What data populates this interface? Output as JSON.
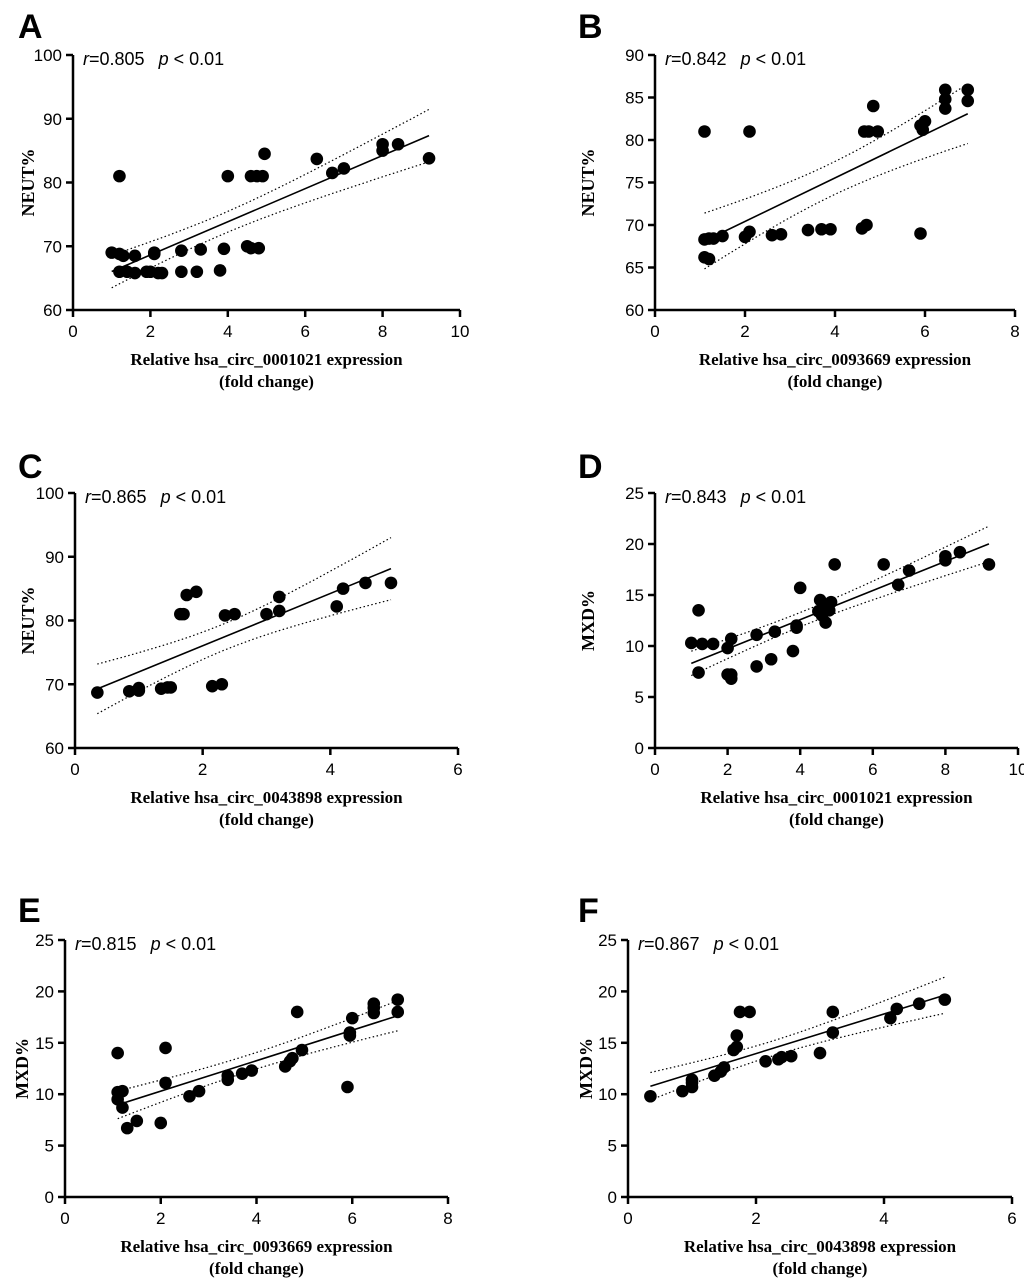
{
  "chart_data": [
    {
      "panel": "A",
      "type": "scatter",
      "r_label": "r",
      "r_value": "=0.805",
      "p_label": "p",
      "p_value": " < 0.01",
      "ylabel": "NEUT%",
      "xlabel": [
        "Relative hsa_circ_0001021 expression",
        "(fold change)"
      ],
      "xlim": [
        0,
        10
      ],
      "ylim": [
        60,
        100
      ],
      "xticks": [
        0,
        2,
        4,
        6,
        8,
        10
      ],
      "yticks": [
        60,
        70,
        80,
        90,
        100
      ],
      "points": [
        [
          1.0,
          69
        ],
        [
          1.2,
          68.8
        ],
        [
          1.3,
          68.5
        ],
        [
          1.6,
          68.5
        ],
        [
          1.2,
          66
        ],
        [
          1.4,
          66
        ],
        [
          1.6,
          65.8
        ],
        [
          1.9,
          66
        ],
        [
          2.0,
          66
        ],
        [
          2.1,
          68.8
        ],
        [
          2.1,
          69
        ],
        [
          2.2,
          65.8
        ],
        [
          2.3,
          65.8
        ],
        [
          2.8,
          69.3
        ],
        [
          2.8,
          66
        ],
        [
          3.2,
          66
        ],
        [
          3.3,
          69.5
        ],
        [
          3.8,
          66.2
        ],
        [
          3.9,
          69.6
        ],
        [
          4.0,
          81
        ],
        [
          4.5,
          70
        ],
        [
          4.6,
          69.7
        ],
        [
          4.8,
          69.7
        ],
        [
          4.6,
          81
        ],
        [
          4.75,
          81
        ],
        [
          4.9,
          81
        ],
        [
          1.2,
          81
        ],
        [
          4.95,
          84.5
        ],
        [
          6.3,
          83.7
        ],
        [
          6.7,
          81.5
        ],
        [
          7.0,
          82.2
        ],
        [
          8.0,
          86
        ],
        [
          8.0,
          85
        ],
        [
          8.4,
          86
        ],
        [
          9.2,
          83.8
        ]
      ]
    },
    {
      "panel": "B",
      "type": "scatter",
      "r_label": "r",
      "r_value": "=0.842",
      "p_label": "p",
      "p_value": " < 0.01",
      "ylabel": "NEUT%",
      "xlabel": [
        "Relative hsa_circ_0093669 expression",
        "(fold change)"
      ],
      "xlim": [
        0,
        8
      ],
      "ylim": [
        60,
        90
      ],
      "xticks": [
        0,
        2,
        4,
        6,
        8
      ],
      "yticks": [
        60,
        65,
        70,
        75,
        80,
        85,
        90
      ],
      "points": [
        [
          1.1,
          81
        ],
        [
          2.1,
          81
        ],
        [
          1.1,
          68.3
        ],
        [
          1.2,
          68.4
        ],
        [
          1.3,
          68.4
        ],
        [
          1.5,
          68.7
        ],
        [
          1.1,
          66.2
        ],
        [
          1.2,
          66
        ],
        [
          2.0,
          68.6
        ],
        [
          2.1,
          69.2
        ],
        [
          2.6,
          68.8
        ],
        [
          2.8,
          68.9
        ],
        [
          3.4,
          69.4
        ],
        [
          3.7,
          69.5
        ],
        [
          3.9,
          69.5
        ],
        [
          4.6,
          69.6
        ],
        [
          4.7,
          70
        ],
        [
          4.65,
          81
        ],
        [
          4.75,
          81
        ],
        [
          4.95,
          81
        ],
        [
          4.85,
          84
        ],
        [
          5.9,
          69
        ],
        [
          5.95,
          81.2
        ],
        [
          5.9,
          81.7
        ],
        [
          6.0,
          82.2
        ],
        [
          6.45,
          85.9
        ],
        [
          6.45,
          84.8
        ],
        [
          6.45,
          83.7
        ],
        [
          6.95,
          85.9
        ],
        [
          6.95,
          84.6
        ]
      ]
    },
    {
      "panel": "C",
      "type": "scatter",
      "r_label": "r",
      "r_value": "=0.865",
      "p_label": "p",
      "p_value": " < 0.01",
      "ylabel": "NEUT%",
      "xlabel": [
        "Relative hsa_circ_0043898 expression",
        "(fold change)"
      ],
      "xlim": [
        0,
        6
      ],
      "ylim": [
        60,
        100
      ],
      "xticks": [
        0,
        2,
        4,
        6
      ],
      "yticks": [
        60,
        70,
        80,
        90,
        100
      ],
      "points": [
        [
          0.35,
          68.7
        ],
        [
          0.85,
          68.9
        ],
        [
          1.0,
          69
        ],
        [
          1.0,
          69.4
        ],
        [
          1.35,
          69.3
        ],
        [
          1.45,
          69.5
        ],
        [
          1.5,
          69.5
        ],
        [
          1.65,
          81
        ],
        [
          1.7,
          81
        ],
        [
          1.75,
          84
        ],
        [
          1.9,
          84.5
        ],
        [
          2.15,
          69.7
        ],
        [
          2.3,
          70
        ],
        [
          2.35,
          80.8
        ],
        [
          2.5,
          81
        ],
        [
          3.0,
          81
        ],
        [
          3.2,
          83.7
        ],
        [
          3.2,
          81.5
        ],
        [
          4.1,
          82.2
        ],
        [
          4.2,
          85
        ],
        [
          4.55,
          85.9
        ],
        [
          4.95,
          85.9
        ]
      ]
    },
    {
      "panel": "D",
      "type": "scatter",
      "r_label": "r",
      "r_value": "=0.843",
      "p_label": "p",
      "p_value": " < 0.01",
      "ylabel": "MXD%",
      "xlabel": [
        "Relative hsa_circ_0001021 expression",
        "(fold change)"
      ],
      "xlim": [
        0,
        10
      ],
      "ylim": [
        0,
        25
      ],
      "xticks": [
        0,
        2,
        4,
        6,
        8,
        10
      ],
      "yticks": [
        0,
        5,
        10,
        15,
        20,
        25
      ],
      "points": [
        [
          1.0,
          10.3
        ],
        [
          1.2,
          13.5
        ],
        [
          1.2,
          7.4
        ],
        [
          1.3,
          10.2
        ],
        [
          1.6,
          10.2
        ],
        [
          2.0,
          7.2
        ],
        [
          2.0,
          9.8
        ],
        [
          2.1,
          6.8
        ],
        [
          2.1,
          10.7
        ],
        [
          2.1,
          7.2
        ],
        [
          2.8,
          8
        ],
        [
          2.8,
          11.1
        ],
        [
          3.2,
          8.7
        ],
        [
          3.3,
          11.4
        ],
        [
          3.8,
          9.5
        ],
        [
          3.9,
          12
        ],
        [
          3.9,
          11.8
        ],
        [
          4.0,
          15.7
        ],
        [
          4.5,
          13.4
        ],
        [
          4.55,
          14.5
        ],
        [
          4.6,
          13
        ],
        [
          4.7,
          12.3
        ],
        [
          4.7,
          14
        ],
        [
          4.8,
          13.5
        ],
        [
          4.85,
          14.3
        ],
        [
          4.95,
          18
        ],
        [
          6.3,
          18
        ],
        [
          6.7,
          16
        ],
        [
          7.0,
          17.4
        ],
        [
          8.0,
          18.8
        ],
        [
          8.0,
          18.4
        ],
        [
          8.4,
          19.2
        ],
        [
          9.2,
          18
        ]
      ]
    },
    {
      "panel": "E",
      "type": "scatter",
      "r_label": "r",
      "r_value": "=0.815",
      "p_label": "p",
      "p_value": " < 0.01",
      "ylabel": "MXD%",
      "xlabel": [
        "Relative hsa_circ_0093669 expression",
        "(fold change)"
      ],
      "xlim": [
        0,
        8
      ],
      "ylim": [
        0,
        25
      ],
      "xticks": [
        0,
        2,
        4,
        6,
        8
      ],
      "yticks": [
        0,
        5,
        10,
        15,
        20,
        25
      ],
      "points": [
        [
          1.1,
          14
        ],
        [
          1.1,
          10.2
        ],
        [
          1.1,
          9.5
        ],
        [
          1.2,
          10.3
        ],
        [
          1.2,
          8.7
        ],
        [
          1.3,
          6.7
        ],
        [
          1.5,
          7.4
        ],
        [
          2.0,
          7.2
        ],
        [
          2.1,
          14.5
        ],
        [
          2.1,
          11.1
        ],
        [
          2.6,
          9.8
        ],
        [
          2.8,
          10.3
        ],
        [
          3.4,
          11.4
        ],
        [
          3.4,
          11.8
        ],
        [
          3.7,
          12
        ],
        [
          3.9,
          12.3
        ],
        [
          4.6,
          12.7
        ],
        [
          4.7,
          13.2
        ],
        [
          4.75,
          13.5
        ],
        [
          4.85,
          18
        ],
        [
          4.95,
          14.3
        ],
        [
          5.9,
          10.7
        ],
        [
          5.95,
          16
        ],
        [
          5.95,
          15.7
        ],
        [
          6.0,
          17.4
        ],
        [
          6.45,
          18.8
        ],
        [
          6.45,
          18.4
        ],
        [
          6.45,
          17.9
        ],
        [
          6.95,
          19.2
        ],
        [
          6.95,
          18
        ]
      ]
    },
    {
      "panel": "F",
      "type": "scatter",
      "r_label": "r",
      "r_value": "=0.867",
      "p_label": "p",
      "p_value": " < 0.01",
      "ylabel": "MXD%",
      "xlabel": [
        "Relative hsa_circ_0043898 expression",
        "(fold change)"
      ],
      "xlim": [
        0,
        6
      ],
      "ylim": [
        0,
        25
      ],
      "xticks": [
        0,
        2,
        4,
        6
      ],
      "yticks": [
        0,
        5,
        10,
        15,
        20,
        25
      ],
      "points": [
        [
          0.35,
          9.8
        ],
        [
          0.85,
          10.3
        ],
        [
          1.0,
          10.7
        ],
        [
          1.0,
          11.1
        ],
        [
          1.0,
          11.4
        ],
        [
          1.35,
          11.8
        ],
        [
          1.45,
          12.2
        ],
        [
          1.5,
          12.6
        ],
        [
          1.65,
          14.3
        ],
        [
          1.7,
          14.6
        ],
        [
          1.7,
          15.7
        ],
        [
          1.75,
          18
        ],
        [
          1.9,
          18
        ],
        [
          2.15,
          13.2
        ],
        [
          2.35,
          13.4
        ],
        [
          2.4,
          13.6
        ],
        [
          2.55,
          13.7
        ],
        [
          3.0,
          14
        ],
        [
          3.2,
          16
        ],
        [
          3.2,
          18
        ],
        [
          4.1,
          17.4
        ],
        [
          4.2,
          18.3
        ],
        [
          4.55,
          18.8
        ],
        [
          4.95,
          19.2
        ]
      ]
    }
  ]
}
